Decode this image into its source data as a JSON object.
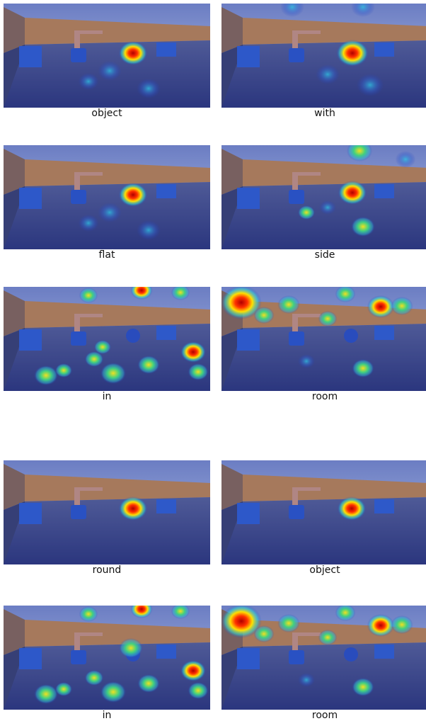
{
  "panels": [
    {
      "label": "object"
    },
    {
      "label": "with"
    },
    {
      "label": "flat"
    },
    {
      "label": "side"
    },
    {
      "label": "in"
    },
    {
      "label": "room"
    },
    {
      "label": "round"
    },
    {
      "label": "object"
    },
    {
      "label": "in"
    },
    {
      "label": "room"
    }
  ]
}
